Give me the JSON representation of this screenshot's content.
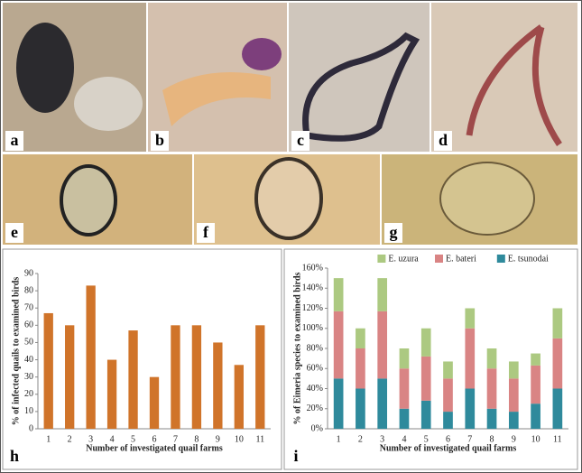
{
  "photo_panels": [
    "a",
    "b",
    "c",
    "d",
    "e",
    "f",
    "g"
  ],
  "chart_data": [
    {
      "type": "bar",
      "panel": "h",
      "ylabel": "% of infected quails to examined birds",
      "xlabel": "Number of investigated quail farms",
      "categories": [
        "1",
        "2",
        "3",
        "4",
        "5",
        "6",
        "7",
        "8",
        "9",
        "10",
        "11"
      ],
      "values": [
        67,
        60,
        83,
        40,
        57,
        30,
        60,
        60,
        50,
        37,
        60
      ],
      "color": "#d0742a",
      "ylim": [
        0,
        90
      ],
      "yticks": [
        0,
        10,
        20,
        30,
        40,
        50,
        60,
        70,
        80,
        90
      ]
    },
    {
      "type": "stacked_bar",
      "panel": "i",
      "ylabel": "% of Eimeria species to examined birds",
      "xlabel": "Number of investigated quail farms",
      "categories": [
        "1",
        "2",
        "3",
        "4",
        "5",
        "6",
        "7",
        "8",
        "9",
        "10",
        "11"
      ],
      "series": [
        {
          "name": "E. tsunodai",
          "color": "#2f8a9c",
          "values": [
            50,
            40,
            50,
            20,
            28,
            17,
            40,
            20,
            17,
            25,
            40
          ]
        },
        {
          "name": "E. bateri",
          "color": "#d98484",
          "values": [
            67,
            40,
            67,
            40,
            44,
            33,
            60,
            40,
            33,
            38,
            50
          ]
        },
        {
          "name": "E. uzura",
          "color": "#acc981",
          "values": [
            33,
            20,
            33,
            20,
            28,
            17,
            20,
            20,
            17,
            12,
            30
          ]
        }
      ],
      "legend": "top-right",
      "ylim": [
        0,
        160
      ],
      "yticks": [
        {
          "value": 0,
          "label": "0%"
        },
        {
          "value": 20,
          "label": "20%"
        },
        {
          "value": 40,
          "label": "40%"
        },
        {
          "value": 60,
          "label": "60%"
        },
        {
          "value": 80,
          "label": "80%"
        },
        {
          "value": 100,
          "label": "100%"
        },
        {
          "value": 120,
          "label": "120%"
        },
        {
          "value": 140,
          "label": "140%"
        },
        {
          "value": 160,
          "label": "160%"
        }
      ]
    }
  ]
}
